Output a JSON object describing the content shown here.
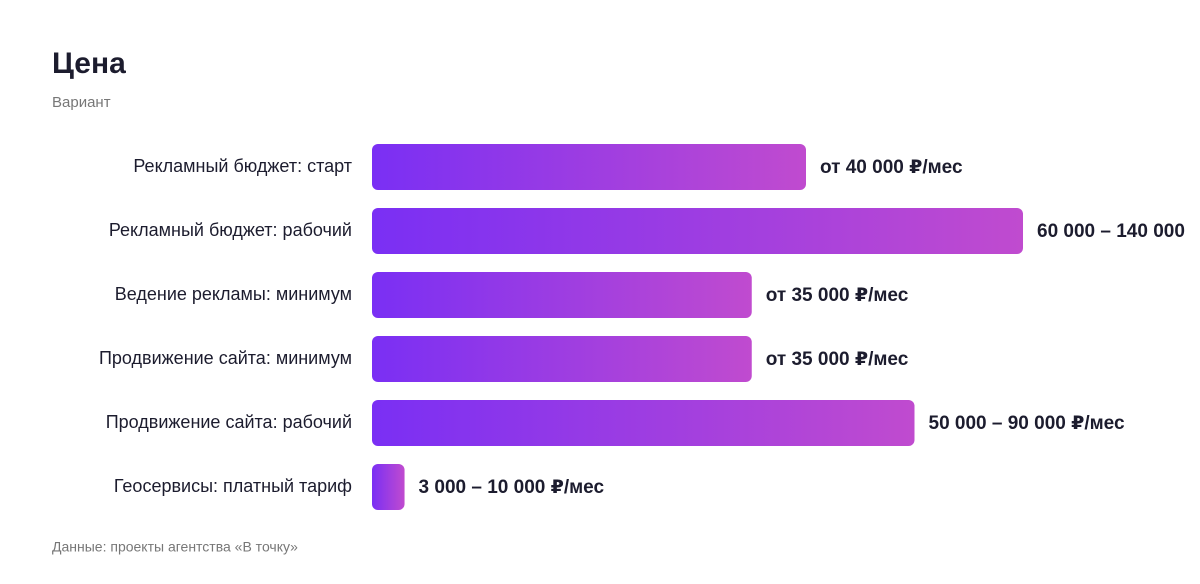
{
  "chart_data": {
    "type": "bar",
    "orientation": "horizontal",
    "title": "Цена",
    "subtitle": "Вариант",
    "footnote": "Данные: проекты агентства «В точку»",
    "categories": [
      "Рекламный бюджет: старт",
      "Рекламный бюджет: рабочий",
      "Ведение рекламы: минимум",
      "Продвижение сайта: минимум",
      "Продвижение сайта: рабочий",
      "Геосервисы: платный тариф"
    ],
    "values": [
      40000,
      60000,
      35000,
      35000,
      50000,
      3000
    ],
    "value_labels": [
      "от 40 000 ₽/мес",
      "60 000 – 140 000",
      "от 35 000 ₽/мес",
      "от 35 000 ₽/мес",
      "50 000 – 90 000 ₽/мес",
      "3 000 – 10 000 ₽/мес"
    ],
    "gradient": [
      "#7a2ff4",
      "#c04bcf"
    ],
    "xlim": [
      0,
      60000
    ],
    "grid": false
  }
}
